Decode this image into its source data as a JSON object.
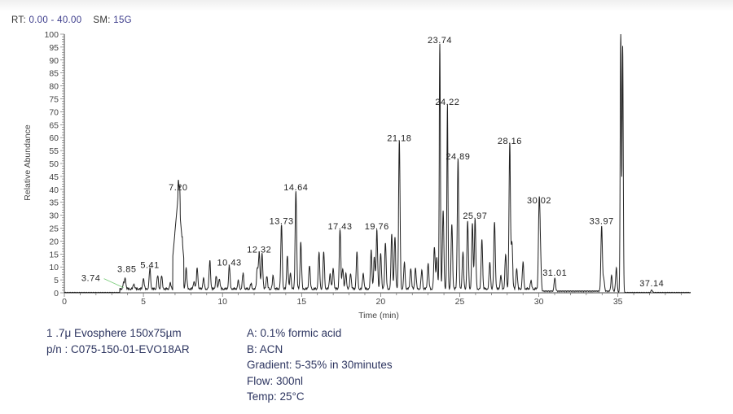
{
  "header": {
    "rt_label": "RT:",
    "rt_value": "0.00 - 40.00",
    "sm_label": "SM:",
    "sm_value": "15G"
  },
  "chart_data": {
    "type": "line",
    "title": "",
    "xlabel": "Time (min)",
    "ylabel": "Relative Abundance",
    "xlim": [
      0,
      40
    ],
    "ylim": [
      0,
      100
    ],
    "xticks": [
      0,
      5,
      10,
      15,
      20,
      25,
      30,
      35
    ],
    "yticks": [
      0,
      5,
      10,
      15,
      20,
      25,
      30,
      35,
      40,
      45,
      50,
      55,
      60,
      65,
      70,
      75,
      80,
      85,
      90,
      95,
      100
    ],
    "grid": false,
    "labeled_peaks": [
      {
        "label": "3.74",
        "x": 3.74,
        "y": 2
      },
      {
        "label": "3.85",
        "x": 3.85,
        "y": 4
      },
      {
        "label": "5.41",
        "x": 5.41,
        "y": 8
      },
      {
        "label": "7.20",
        "x": 7.2,
        "y": 38
      },
      {
        "label": "10.43",
        "x": 10.43,
        "y": 9
      },
      {
        "label": "12.32",
        "x": 12.32,
        "y": 14
      },
      {
        "label": "13.73",
        "x": 13.73,
        "y": 25
      },
      {
        "label": "14.64",
        "x": 14.64,
        "y": 38
      },
      {
        "label": "17.43",
        "x": 17.43,
        "y": 23
      },
      {
        "label": "19.76",
        "x": 19.76,
        "y": 23
      },
      {
        "label": "21.18",
        "x": 21.18,
        "y": 57
      },
      {
        "label": "23.74",
        "x": 23.74,
        "y": 95
      },
      {
        "label": "24.22",
        "x": 24.22,
        "y": 71
      },
      {
        "label": "24.89",
        "x": 24.89,
        "y": 50
      },
      {
        "label": "25.97",
        "x": 25.97,
        "y": 27
      },
      {
        "label": "28.16",
        "x": 28.16,
        "y": 56
      },
      {
        "label": "30.02",
        "x": 30.02,
        "y": 33
      },
      {
        "label": "31.01",
        "x": 31.01,
        "y": 5
      },
      {
        "label": "33.97",
        "x": 33.97,
        "y": 25
      },
      {
        "label": "37.14",
        "x": 37.14,
        "y": 1
      }
    ],
    "other_peaks": [
      [
        4.4,
        2
      ],
      [
        5.0,
        4
      ],
      [
        5.9,
        5
      ],
      [
        6.15,
        5
      ],
      [
        6.7,
        2
      ],
      [
        7.3,
        35
      ],
      [
        7.45,
        20
      ],
      [
        7.7,
        8
      ],
      [
        8.2,
        3
      ],
      [
        8.4,
        8
      ],
      [
        8.8,
        4
      ],
      [
        9.2,
        11
      ],
      [
        9.6,
        5
      ],
      [
        9.8,
        4
      ],
      [
        11.0,
        3
      ],
      [
        11.3,
        6
      ],
      [
        11.8,
        2
      ],
      [
        12.2,
        8
      ],
      [
        12.5,
        14
      ],
      [
        12.8,
        5
      ],
      [
        13.2,
        5
      ],
      [
        14.1,
        13
      ],
      [
        14.3,
        6
      ],
      [
        14.95,
        18
      ],
      [
        15.5,
        9
      ],
      [
        16.1,
        14
      ],
      [
        16.4,
        14
      ],
      [
        16.8,
        6
      ],
      [
        17.0,
        8
      ],
      [
        17.6,
        8
      ],
      [
        17.8,
        6
      ],
      [
        18.1,
        6
      ],
      [
        18.5,
        14
      ],
      [
        18.9,
        6
      ],
      [
        19.4,
        15
      ],
      [
        19.6,
        12
      ],
      [
        20.0,
        14
      ],
      [
        20.3,
        18
      ],
      [
        20.7,
        21
      ],
      [
        20.9,
        20
      ],
      [
        21.5,
        10
      ],
      [
        21.9,
        8
      ],
      [
        22.2,
        8
      ],
      [
        22.6,
        7
      ],
      [
        23.0,
        10
      ],
      [
        23.4,
        16
      ],
      [
        23.55,
        12
      ],
      [
        23.95,
        30
      ],
      [
        24.5,
        25
      ],
      [
        25.2,
        14
      ],
      [
        25.5,
        26
      ],
      [
        25.8,
        25
      ],
      [
        26.4,
        19
      ],
      [
        26.9,
        10
      ],
      [
        27.2,
        26
      ],
      [
        27.6,
        5
      ],
      [
        27.9,
        13
      ],
      [
        28.3,
        18
      ],
      [
        28.6,
        8
      ],
      [
        29.0,
        10
      ],
      [
        29.5,
        3
      ],
      [
        30.1,
        15
      ],
      [
        34.1,
        5
      ],
      [
        34.6,
        6
      ],
      [
        34.9,
        9
      ],
      [
        35.18,
        100
      ],
      [
        35.3,
        95
      ]
    ]
  },
  "notes_left": [
    "1 .7μ Evosphere 150x75µm",
    "p/n : C075-150-01-EVO18AR"
  ],
  "notes_right": [
    "A: 0.1% formic acid",
    "B: ACN",
    "Gradient:  5-35% in 30minutes",
    "Flow:  300nl",
    "Temp: 25°C"
  ]
}
